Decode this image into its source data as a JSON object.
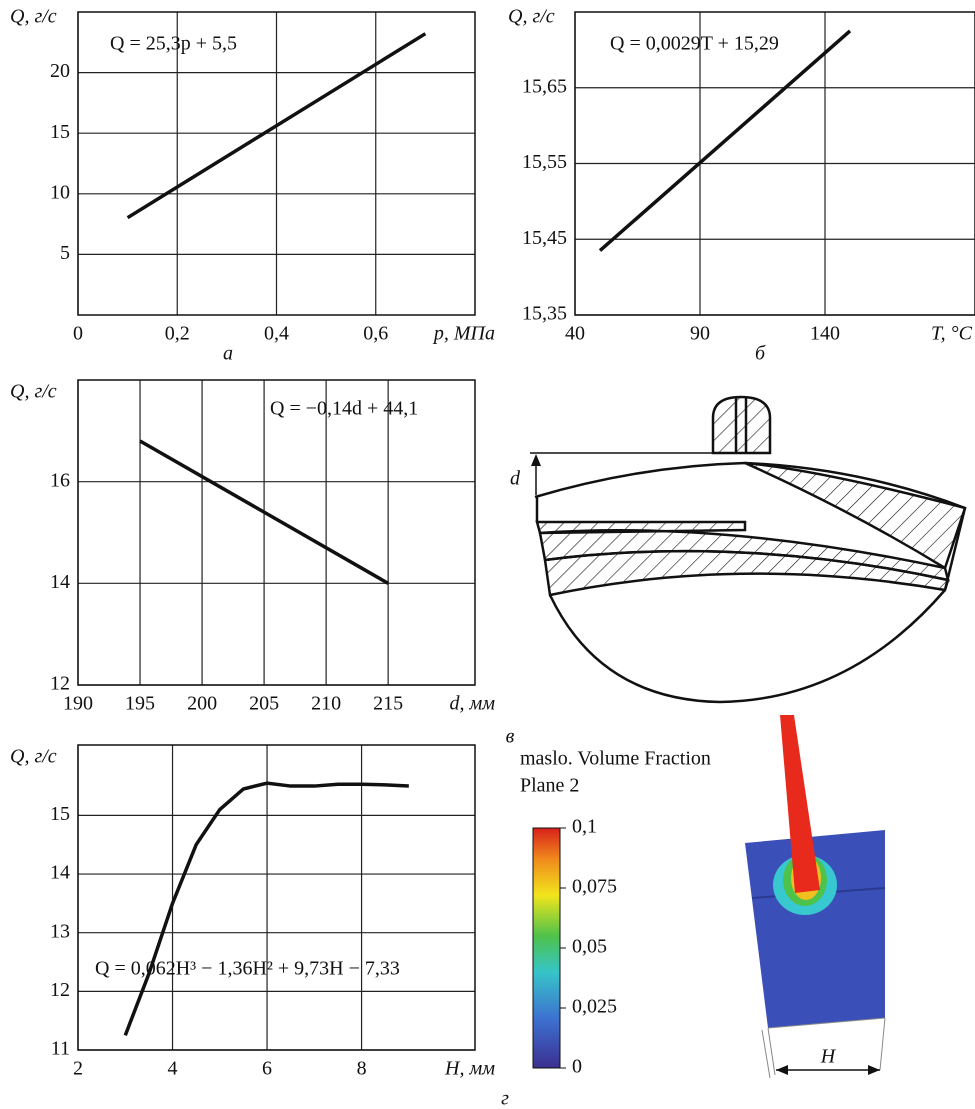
{
  "chart_data": [
    {
      "type": "line",
      "y_label": "Q, г/с",
      "x_label": "p, МПа",
      "caption": "а",
      "annotation": "Q = 25,3p + 5,5",
      "x": [
        0.1,
        0.7
      ],
      "values": [
        8.03,
        23.21
      ],
      "color": "#111111",
      "xlim": [
        0,
        0.8
      ],
      "ylim": [
        0,
        25
      ],
      "xticks": [
        0,
        {
          "value": 0.2,
          "label": "0,2"
        },
        {
          "value": 0.4,
          "label": "0,4"
        },
        {
          "value": 0.6,
          "label": "0,6"
        }
      ],
      "yticks": [
        5,
        10,
        15,
        20
      ],
      "grid": true
    },
    {
      "type": "line",
      "y_label": "Q, г/с",
      "x_label": "T, °C",
      "caption": "б",
      "annotation": "Q = 0,0029T + 15,29",
      "x": [
        50,
        150
      ],
      "values": [
        15.435,
        15.725
      ],
      "color": "#111111",
      "xlim": [
        40,
        200
      ],
      "ylim": [
        15.35,
        15.75
      ],
      "xticks": [
        40,
        90,
        140
      ],
      "yticks": [
        {
          "value": 15.35,
          "label": "15,35"
        },
        {
          "value": 15.45,
          "label": "15,45"
        },
        {
          "value": 15.55,
          "label": "15,55"
        },
        {
          "value": 15.65,
          "label": "15,65"
        }
      ],
      "grid": true
    },
    {
      "type": "line",
      "y_label": "Q, г/с",
      "x_label": "d, мм",
      "caption": "в",
      "annotation": "Q = −0,14d + 44,1",
      "x": [
        195,
        215
      ],
      "values": [
        16.8,
        14.0
      ],
      "color": "#111111",
      "xlim": [
        190,
        222
      ],
      "ylim": [
        12,
        18
      ],
      "xticks": [
        190,
        195,
        200,
        205,
        210,
        215
      ],
      "yticks": [
        12,
        14,
        16
      ],
      "grid": true
    },
    {
      "type": "line",
      "y_label": "Q, г/с",
      "x_label": "H, мм",
      "caption": "г",
      "annotation": "Q = 0,062H³ − 1,36H² + 9,73H − 7,33",
      "x": [
        3,
        3.5,
        4,
        4.5,
        5,
        5.5,
        6,
        6.5,
        7,
        7.5,
        8,
        8.5,
        9
      ],
      "values": [
        11.25,
        12.3,
        13.5,
        14.5,
        15.1,
        15.45,
        15.55,
        15.5,
        15.5,
        15.53,
        15.53,
        15.52,
        15.5
      ],
      "color": "#111111",
      "xlim": [
        2,
        10.4
      ],
      "ylim": [
        11,
        16.2
      ],
      "xticks": [
        2,
        4,
        6,
        8
      ],
      "yticks": [
        11,
        12,
        13,
        14,
        15
      ],
      "grid": true
    },
    {
      "type": "colorbar",
      "title": "maslo. Volume Fraction",
      "subtitle": "Plane 2",
      "clim": [
        0,
        0.1
      ],
      "ticks": [
        0,
        {
          "value": 0.025,
          "label": "0,025"
        },
        {
          "value": 0.05,
          "label": "0,05"
        },
        {
          "value": 0.075,
          "label": "0,075"
        },
        {
          "value": 0.1,
          "label": "0,1"
        }
      ]
    }
  ],
  "figure": {
    "diagram_label": "d",
    "simulation_label": "H"
  }
}
